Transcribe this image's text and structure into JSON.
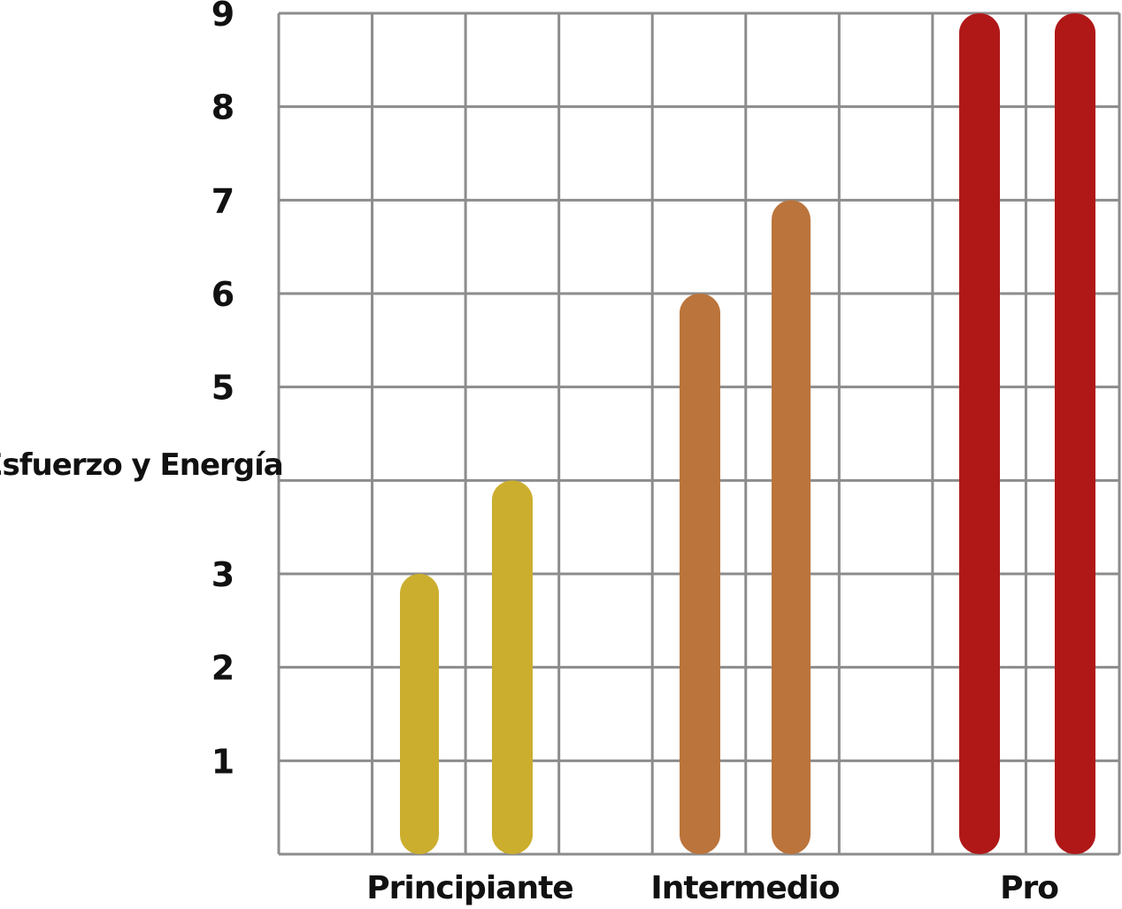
{
  "chart_data": {
    "type": "bar",
    "ylabel": "Esfuerzo y Energía",
    "xlabel": "",
    "ylim": [
      0,
      9
    ],
    "y_ticks": [
      "1",
      "2",
      "3",
      "5",
      "6",
      "7",
      "8",
      "9"
    ],
    "grid": true,
    "categories": [
      "Principiante",
      "Intermedio",
      "Pro"
    ],
    "bars": [
      {
        "category": "Principiante",
        "value": 3,
        "color": "#CCAE2E"
      },
      {
        "category": "Principiante",
        "value": 4,
        "color": "#CCAE2E"
      },
      {
        "category": "Intermedio",
        "value": 6,
        "color": "#BB743B"
      },
      {
        "category": "Intermedio",
        "value": 7,
        "color": "#BB743B"
      },
      {
        "category": "Pro",
        "value": 9,
        "color": "#B01818"
      },
      {
        "category": "Pro",
        "value": 9,
        "color": "#B01818"
      }
    ],
    "colors": {
      "grid": "#8C8C8C",
      "text": "#111111"
    }
  }
}
